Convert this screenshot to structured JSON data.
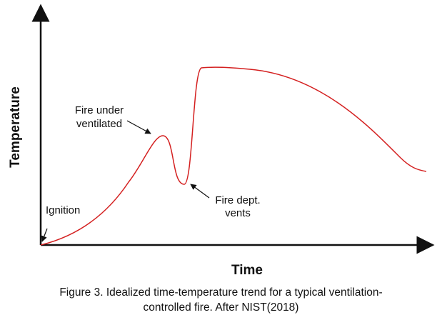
{
  "figure": {
    "y_axis_label": "Temperature",
    "x_axis_label": "Time",
    "caption_line1": "Figure 3. Idealized time-temperature trend for a typical ventilation-",
    "caption_line2": "controlled fire. After NIST(2018)",
    "curve_color": "#d42020",
    "axis_color": "#111111",
    "annotations": {
      "ignition": "Ignition",
      "under_ventilated_line1": "Fire under",
      "under_ventilated_line2": "ventilated",
      "vents_line1": "Fire dept.",
      "vents_line2": "vents"
    }
  }
}
